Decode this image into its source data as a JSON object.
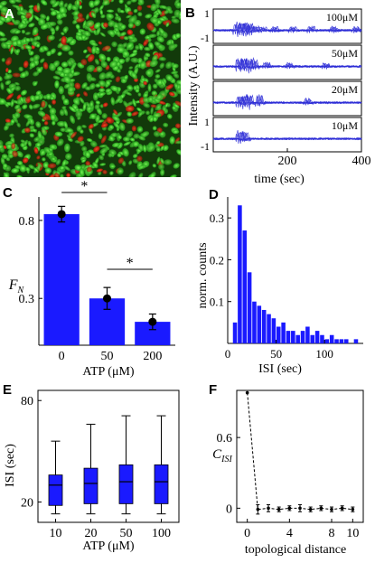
{
  "figure": {
    "panels": [
      {
        "id": "A",
        "letter": "A",
        "type": "image",
        "description_visual": "green-red fluorescence micrograph"
      },
      {
        "id": "B",
        "letter": "B"
      },
      {
        "id": "C",
        "letter": "C"
      },
      {
        "id": "D",
        "letter": "D"
      },
      {
        "id": "E",
        "letter": "E"
      },
      {
        "id": "F",
        "letter": "F"
      }
    ]
  },
  "chart_data": [
    {
      "panel": "B",
      "type": "line",
      "xlabel": "time (sec)",
      "ylabel": "Intensity (A.U.)",
      "xlim": [
        0,
        400
      ],
      "xticks": [
        200,
        400
      ],
      "yticks": [
        "1",
        "-1"
      ],
      "series_color": "#2b2bd6",
      "subplots": [
        {
          "label": "100μM",
          "spike_times": [
            60,
            72,
            85,
            95,
            110,
            130,
            160,
            210,
            260,
            320,
            380
          ]
        },
        {
          "label": "50μM",
          "spike_times": [
            65,
            78,
            90,
            105,
            140,
            200,
            300
          ]
        },
        {
          "label": "20μM",
          "spike_times": [
            68,
            80,
            92,
            120,
            250
          ]
        },
        {
          "label": "10μM",
          "spike_times": [
            65,
            80
          ]
        }
      ]
    },
    {
      "panel": "C",
      "type": "bar",
      "xlabel": "ATP (μM)",
      "ylabel": "F",
      "ylabel_sub": "N",
      "categories": [
        "0",
        "50",
        "200"
      ],
      "values": [
        0.84,
        0.3,
        0.15
      ],
      "errors": [
        0.05,
        0.07,
        0.05
      ],
      "ylim": [
        0,
        0.95
      ],
      "yticks": [
        0.3,
        0.8
      ],
      "ytick_labels": [
        "0.3",
        "0.8"
      ],
      "significance": [
        {
          "from": 0,
          "to": 1,
          "label": "*"
        },
        {
          "from": 1,
          "to": 2,
          "label": "*"
        }
      ],
      "bar_color": "#1a1aff"
    },
    {
      "panel": "D",
      "type": "bar",
      "subtype": "histogram",
      "xlabel": "ISI (sec)",
      "ylabel": "norm. counts",
      "bin_width": 5,
      "bin_centers": [
        7.5,
        12.5,
        17.5,
        22.5,
        27.5,
        32.5,
        37.5,
        42.5,
        47.5,
        52.5,
        57.5,
        62.5,
        67.5,
        72.5,
        77.5,
        82.5,
        87.5,
        92.5,
        97.5,
        102.5,
        107.5,
        112.5,
        117.5,
        122.5,
        127.5,
        132.5
      ],
      "values": [
        0.05,
        0.33,
        0.27,
        0.17,
        0.1,
        0.09,
        0.08,
        0.07,
        0.06,
        0.04,
        0.05,
        0.03,
        0.03,
        0.02,
        0.03,
        0.04,
        0.02,
        0.03,
        0.02,
        0.01,
        0.02,
        0.01,
        0.01,
        0.01,
        0.0,
        0.01
      ],
      "xlim": [
        0,
        140
      ],
      "ylim": [
        0,
        0.35
      ],
      "xticks": [
        0,
        50,
        100
      ],
      "yticks": [
        0.1,
        0.2,
        0.3
      ],
      "bar_color": "#1a1aff"
    },
    {
      "panel": "E",
      "type": "box",
      "xlabel": "ATP (μM)",
      "ylabel": "ISI (sec)",
      "categories": [
        "10",
        "20",
        "50",
        "100"
      ],
      "boxes": [
        {
          "min": 13,
          "q1": 18,
          "median": 30,
          "q3": 36,
          "max": 56
        },
        {
          "min": 13,
          "q1": 19,
          "median": 31,
          "q3": 40,
          "max": 66
        },
        {
          "min": 13,
          "q1": 19,
          "median": 32,
          "q3": 42,
          "max": 71
        },
        {
          "min": 13,
          "q1": 19,
          "median": 32,
          "q3": 42,
          "max": 71
        }
      ],
      "ylim": [
        8,
        86
      ],
      "yticks": [
        20,
        80
      ],
      "box_color": "#1a1aff"
    },
    {
      "panel": "F",
      "type": "line",
      "xlabel": "topological distance",
      "ylabel": "C",
      "ylabel_sub": "ISI",
      "x": [
        0,
        1,
        2,
        3,
        4,
        5,
        6,
        7,
        8,
        9,
        10
      ],
      "y": [
        0.98,
        -0.01,
        0.0,
        -0.01,
        0.0,
        0.0,
        -0.01,
        0.0,
        -0.01,
        0.0,
        -0.01
      ],
      "yerr": [
        0.0,
        0.04,
        0.03,
        0.02,
        0.02,
        0.03,
        0.02,
        0.02,
        0.02,
        0.02,
        0.02
      ],
      "xlim": [
        -1,
        11
      ],
      "ylim": [
        -0.12,
        1.0
      ],
      "xticks": [
        0,
        4,
        8
      ],
      "ytick_values": [
        0,
        0.6
      ],
      "ytick_labels": [
        "0",
        "0.6"
      ],
      "extra_xtick": 10,
      "line_style": "dashed"
    }
  ]
}
